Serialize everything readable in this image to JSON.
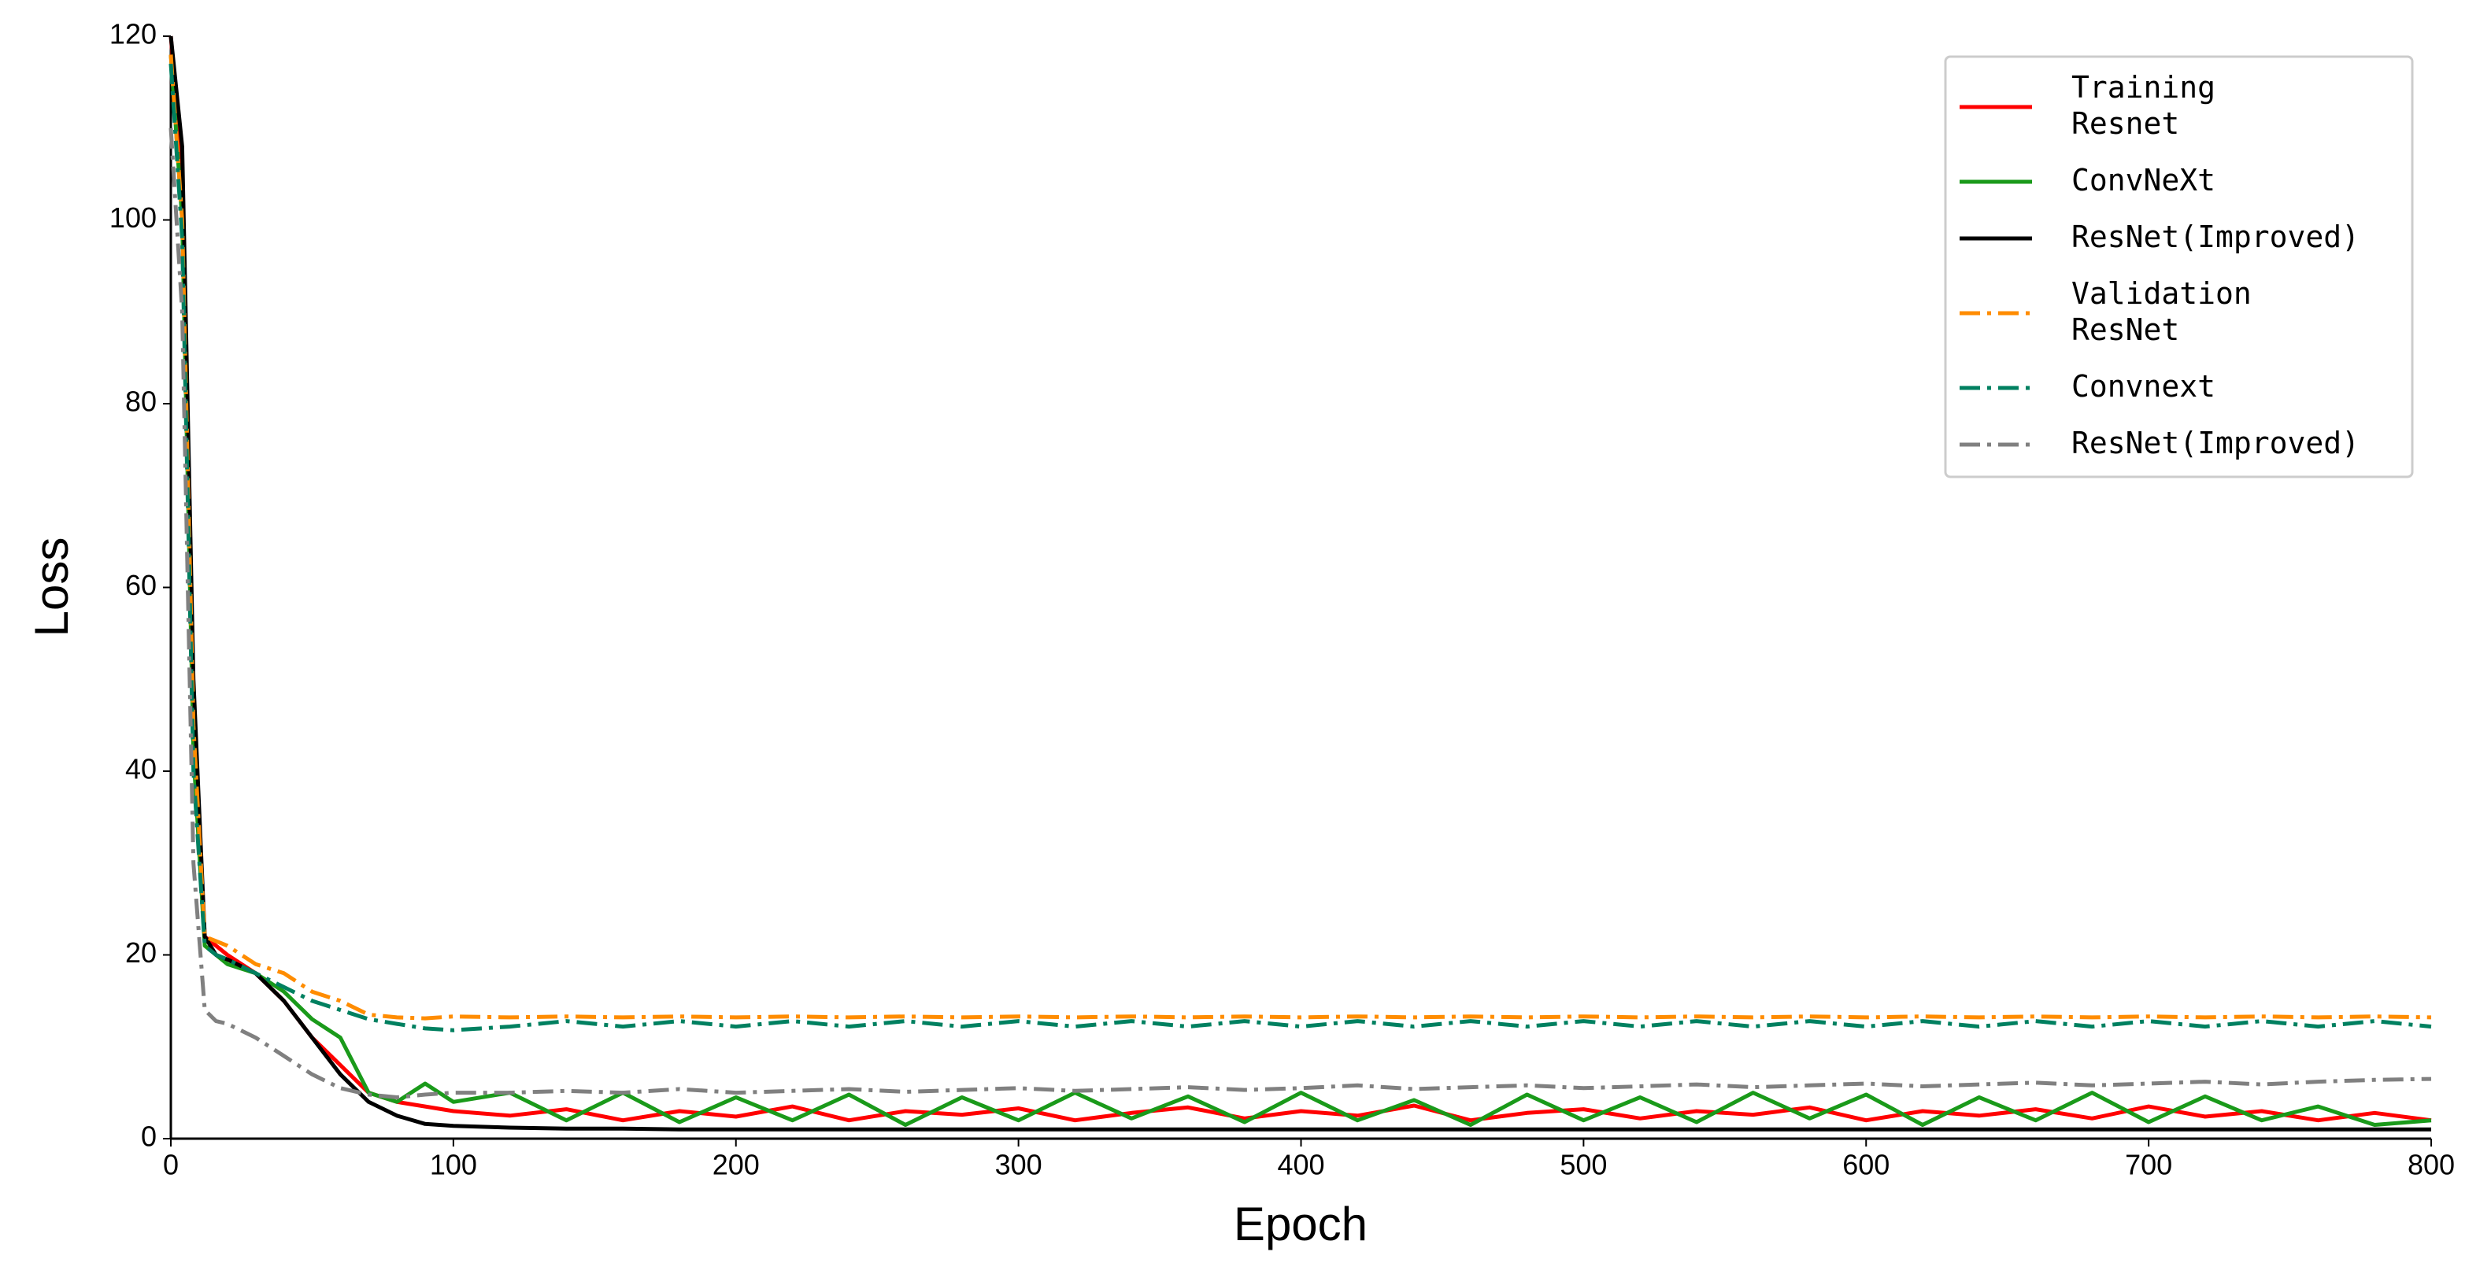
{
  "chart_data": {
    "type": "line",
    "xlabel": "Epoch",
    "ylabel": "Loss",
    "xlim": [
      0,
      800
    ],
    "xticks": [
      0,
      100,
      200,
      300,
      400,
      500,
      600,
      700,
      800
    ],
    "ylim": [
      0,
      120
    ],
    "yticks": [
      0,
      20,
      40,
      60,
      80,
      100,
      120
    ],
    "legend": "upper right",
    "x": [
      0,
      4,
      8,
      12,
      16,
      20,
      30,
      40,
      50,
      60,
      70,
      80,
      90,
      100,
      120,
      140,
      160,
      180,
      200,
      220,
      240,
      260,
      280,
      300,
      320,
      340,
      360,
      380,
      400,
      420,
      440,
      460,
      480,
      500,
      520,
      540,
      560,
      580,
      600,
      620,
      640,
      660,
      680,
      700,
      720,
      740,
      760,
      780,
      800
    ],
    "series": [
      {
        "name": "Training\nResnet",
        "color": "#ff0000",
        "style": "solid",
        "values": [
          120,
          105,
          45,
          22,
          21,
          20,
          18,
          15,
          11,
          8,
          5,
          4,
          3.5,
          3,
          2.5,
          3.2,
          2,
          3,
          2.4,
          3.5,
          2,
          3,
          2.6,
          3.3,
          2,
          2.8,
          3.4,
          2.2,
          3,
          2.5,
          3.6,
          2,
          2.8,
          3.2,
          2.2,
          3,
          2.6,
          3.4,
          2,
          3,
          2.5,
          3.2,
          2.2,
          3.5,
          2.4,
          3,
          2,
          2.8,
          2
        ]
      },
      {
        "name": "ConvNeXt",
        "color": "#1a9a1a",
        "style": "solid",
        "values": [
          118,
          100,
          42,
          21,
          20,
          19,
          18,
          16,
          13,
          11,
          5,
          4,
          6,
          4,
          5,
          2,
          5,
          1.8,
          4.5,
          2,
          4.8,
          1.5,
          4.5,
          2,
          5,
          2.2,
          4.6,
          1.8,
          5,
          2,
          4.2,
          1.5,
          4.8,
          2,
          4.5,
          1.8,
          5,
          2.2,
          4.8,
          1.5,
          4.5,
          2,
          5,
          1.8,
          4.6,
          2,
          3.5,
          1.5,
          2
        ]
      },
      {
        "name": "ResNet(Improved)",
        "color": "#000000",
        "style": "solid",
        "values": [
          120,
          108,
          50,
          22,
          20,
          19.5,
          18,
          15,
          11,
          7,
          4,
          2.5,
          1.6,
          1.4,
          1.2,
          1.1,
          1.1,
          1,
          1,
          1,
          1,
          1,
          1,
          1,
          1,
          1,
          1,
          1,
          1,
          1,
          1,
          1,
          1,
          1,
          1,
          1,
          1,
          1,
          1,
          1,
          1,
          1,
          1,
          1,
          1,
          1,
          1,
          1,
          1
        ]
      },
      {
        "name": "Validation\nResNet",
        "color": "#ff8c00",
        "style": "dashdot",
        "values": [
          118,
          100,
          45,
          22,
          21.5,
          21,
          19,
          18,
          16,
          15,
          13.5,
          13.2,
          13.1,
          13.3,
          13.2,
          13.3,
          13.2,
          13.3,
          13.2,
          13.3,
          13.2,
          13.3,
          13.2,
          13.3,
          13.2,
          13.3,
          13.2,
          13.3,
          13.2,
          13.3,
          13.2,
          13.3,
          13.2,
          13.3,
          13.2,
          13.3,
          13.2,
          13.3,
          13.2,
          13.3,
          13.2,
          13.3,
          13.2,
          13.3,
          13.2,
          13.3,
          13.2,
          13.3,
          13.2
        ]
      },
      {
        "name": "Convnext",
        "color": "#008060",
        "style": "dashdot",
        "values": [
          117,
          98,
          40,
          21,
          20,
          19.5,
          18,
          16.5,
          15,
          14,
          13,
          12.5,
          12,
          11.8,
          12.2,
          12.8,
          12.2,
          12.8,
          12.2,
          12.8,
          12.2,
          12.8,
          12.2,
          12.8,
          12.2,
          12.8,
          12.2,
          12.8,
          12.2,
          12.8,
          12.2,
          12.8,
          12.2,
          12.8,
          12.2,
          12.8,
          12.2,
          12.8,
          12.2,
          12.8,
          12.2,
          12.8,
          12.2,
          12.8,
          12.2,
          12.8,
          12.2,
          12.8,
          12.2
        ]
      },
      {
        "name": "ResNet(Improved)",
        "color": "#808080",
        "style": "dashdot",
        "values": [
          110,
          90,
          30,
          14,
          12.8,
          12.5,
          11,
          9,
          7,
          5.5,
          4.8,
          4.5,
          4.8,
          5,
          5,
          5.2,
          5,
          5.4,
          5,
          5.2,
          5.4,
          5.1,
          5.3,
          5.5,
          5.2,
          5.4,
          5.6,
          5.3,
          5.5,
          5.8,
          5.4,
          5.6,
          5.8,
          5.5,
          5.7,
          5.9,
          5.6,
          5.8,
          6,
          5.7,
          5.9,
          6.1,
          5.8,
          6,
          6.2,
          5.9,
          6.2,
          6.4,
          6.5
        ]
      }
    ]
  }
}
